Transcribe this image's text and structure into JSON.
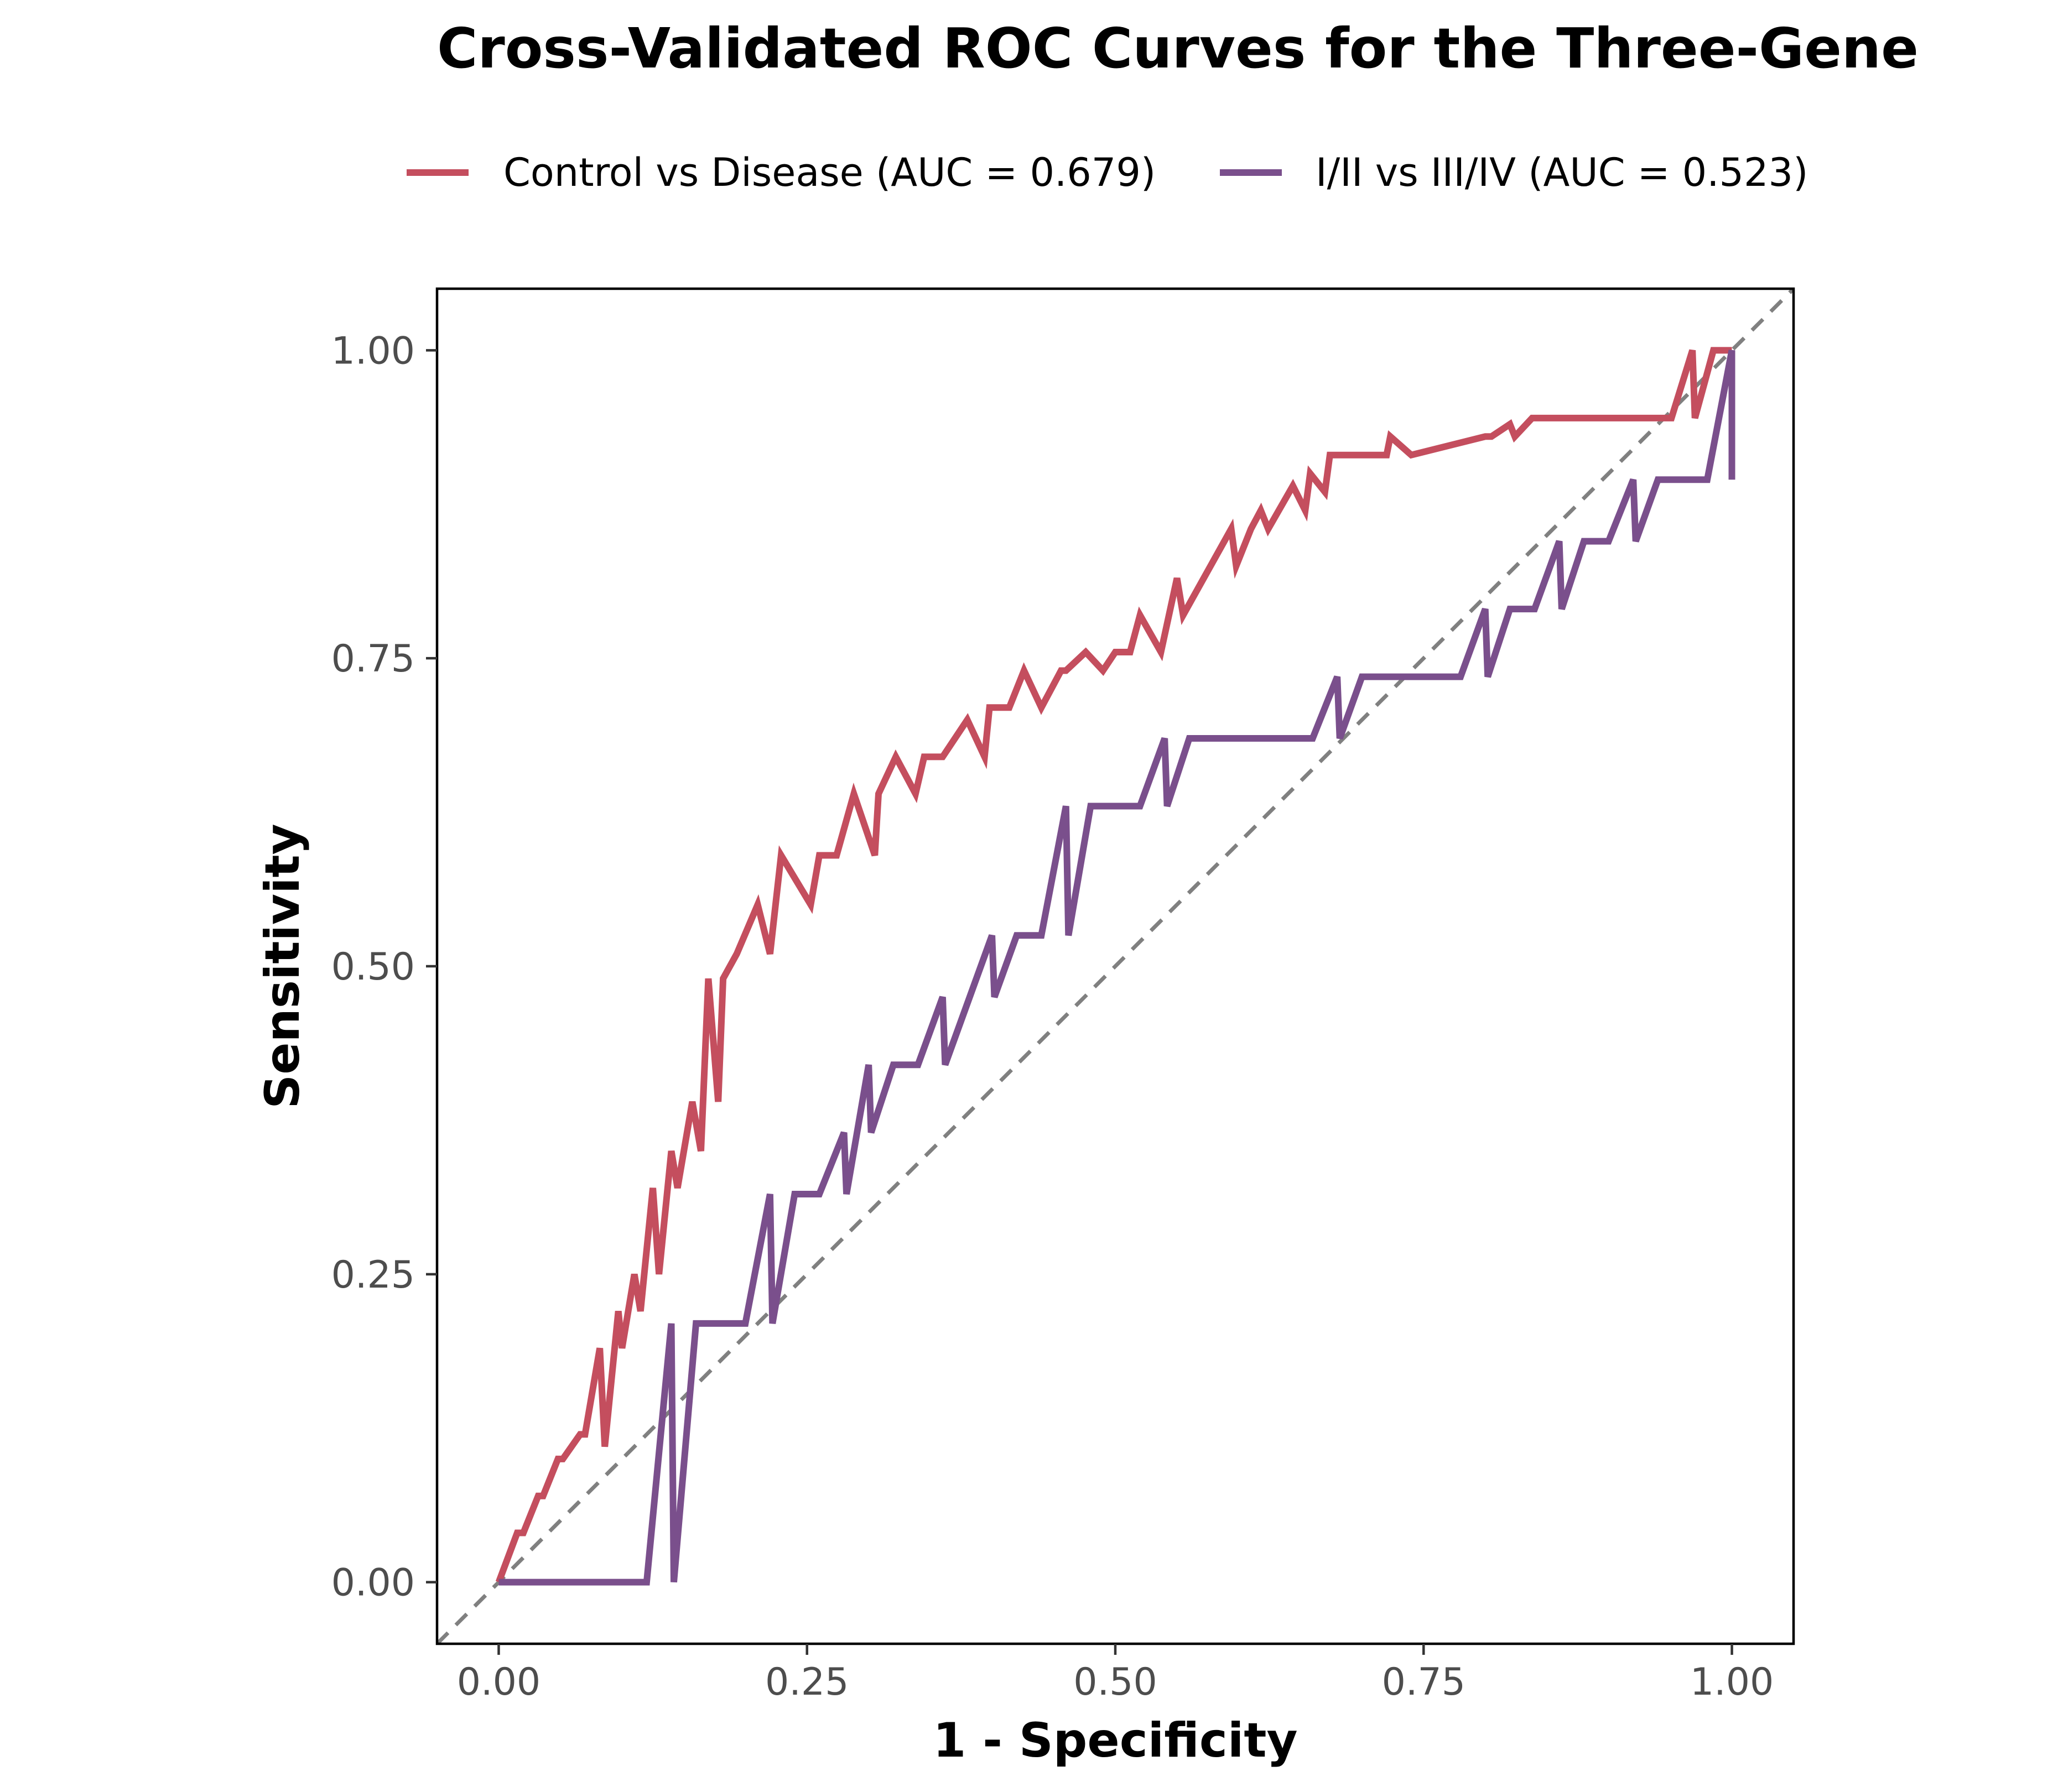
{
  "chart_data": {
    "type": "line",
    "title": "Cross-Validated ROC Curves for the Three-Gene",
    "xlabel": "1 - Specificity",
    "ylabel": "Sensitivity",
    "xlim": [
      -0.05,
      1.05
    ],
    "ylim": [
      -0.05,
      1.05
    ],
    "xticks": [
      0,
      0.25,
      0.5,
      0.75,
      1
    ],
    "yticks": [
      0,
      0.25,
      0.5,
      0.75,
      1
    ],
    "xtick_labels": [
      "0.00",
      "0.25",
      "0.50",
      "0.75",
      "1.00"
    ],
    "ytick_labels": [
      "0.00",
      "0.25",
      "0.50",
      "0.75",
      "1.00"
    ],
    "reference_line": {
      "label": "chance diagonal",
      "color": "#808080",
      "style": "dashed"
    },
    "legend_position": "top",
    "series": [
      {
        "name": "Control vs Disease (AUC = 0.679)",
        "color": "#c44e5e",
        "x": [
          0,
          0.015,
          0.02,
          0.032,
          0.036,
          0.048,
          0.052,
          0.066,
          0.07,
          0.082,
          0.086,
          0.097,
          0.1,
          0.11,
          0.115,
          0.125,
          0.13,
          0.14,
          0.145,
          0.157,
          0.164,
          0.17,
          0.178,
          0.182,
          0.193,
          0.21,
          0.22,
          0.229,
          0.253,
          0.26,
          0.274,
          0.288,
          0.305,
          0.308,
          0.322,
          0.338,
          0.345,
          0.36,
          0.38,
          0.394,
          0.398,
          0.41,
          0.414,
          0.426,
          0.44,
          0.456,
          0.46,
          0.476,
          0.49,
          0.5,
          0.512,
          0.52,
          0.537,
          0.55,
          0.555,
          0.594,
          0.598,
          0.61,
          0.618,
          0.624,
          0.644,
          0.654,
          0.658,
          0.67,
          0.674,
          0.684,
          0.688,
          0.72,
          0.723,
          0.74,
          0.8,
          0.805,
          0.82,
          0.824,
          0.838,
          0.86,
          0.866,
          0.87,
          0.885,
          0.951,
          0.968,
          0.97,
          0.985,
          1
        ],
        "y": [
          0,
          0.04,
          0.04,
          0.07,
          0.07,
          0.1,
          0.1,
          0.12,
          0.12,
          0.19,
          0.11,
          0.22,
          0.19,
          0.25,
          0.22,
          0.32,
          0.25,
          0.35,
          0.32,
          0.39,
          0.35,
          0.49,
          0.39,
          0.49,
          0.51,
          0.55,
          0.51,
          0.59,
          0.55,
          0.59,
          0.59,
          0.64,
          0.59,
          0.64,
          0.67,
          0.64,
          0.67,
          0.67,
          0.7,
          0.67,
          0.71,
          0.71,
          0.71,
          0.74,
          0.71,
          0.74,
          0.74,
          0.755,
          0.74,
          0.755,
          0.755,
          0.785,
          0.755,
          0.815,
          0.785,
          0.855,
          0.825,
          0.855,
          0.87,
          0.855,
          0.89,
          0.87,
          0.9,
          0.885,
          0.915,
          0.915,
          0.915,
          0.915,
          0.93,
          0.915,
          0.93,
          0.93,
          0.94,
          0.93,
          0.945,
          0.945,
          0.945,
          0.945,
          0.945,
          0.945,
          1,
          0.945,
          1,
          1
        ]
      },
      {
        "name": "I/II vs III/IV (AUC = 0.523)",
        "color": "#7a4f8c",
        "x": [
          0,
          0.12,
          0.14,
          0.142,
          0.16,
          0.2,
          0.22,
          0.222,
          0.24,
          0.26,
          0.28,
          0.282,
          0.3,
          0.302,
          0.32,
          0.34,
          0.36,
          0.362,
          0.4,
          0.402,
          0.42,
          0.44,
          0.46,
          0.462,
          0.48,
          0.52,
          0.54,
          0.542,
          0.56,
          0.66,
          0.68,
          0.682,
          0.7,
          0.78,
          0.8,
          0.802,
          0.82,
          0.84,
          0.86,
          0.862,
          0.88,
          0.9,
          0.92,
          0.922,
          0.94,
          0.98,
          1,
          1
        ],
        "y": [
          0,
          0,
          0.21,
          0,
          0.21,
          0.21,
          0.315,
          0.21,
          0.315,
          0.315,
          0.365,
          0.315,
          0.42,
          0.365,
          0.42,
          0.42,
          0.475,
          0.42,
          0.525,
          0.475,
          0.525,
          0.525,
          0.63,
          0.525,
          0.63,
          0.63,
          0.685,
          0.63,
          0.685,
          0.685,
          0.735,
          0.685,
          0.735,
          0.735,
          0.79,
          0.735,
          0.79,
          0.79,
          0.845,
          0.79,
          0.845,
          0.845,
          0.895,
          0.845,
          0.895,
          0.895,
          1,
          0.895
        ]
      }
    ]
  }
}
